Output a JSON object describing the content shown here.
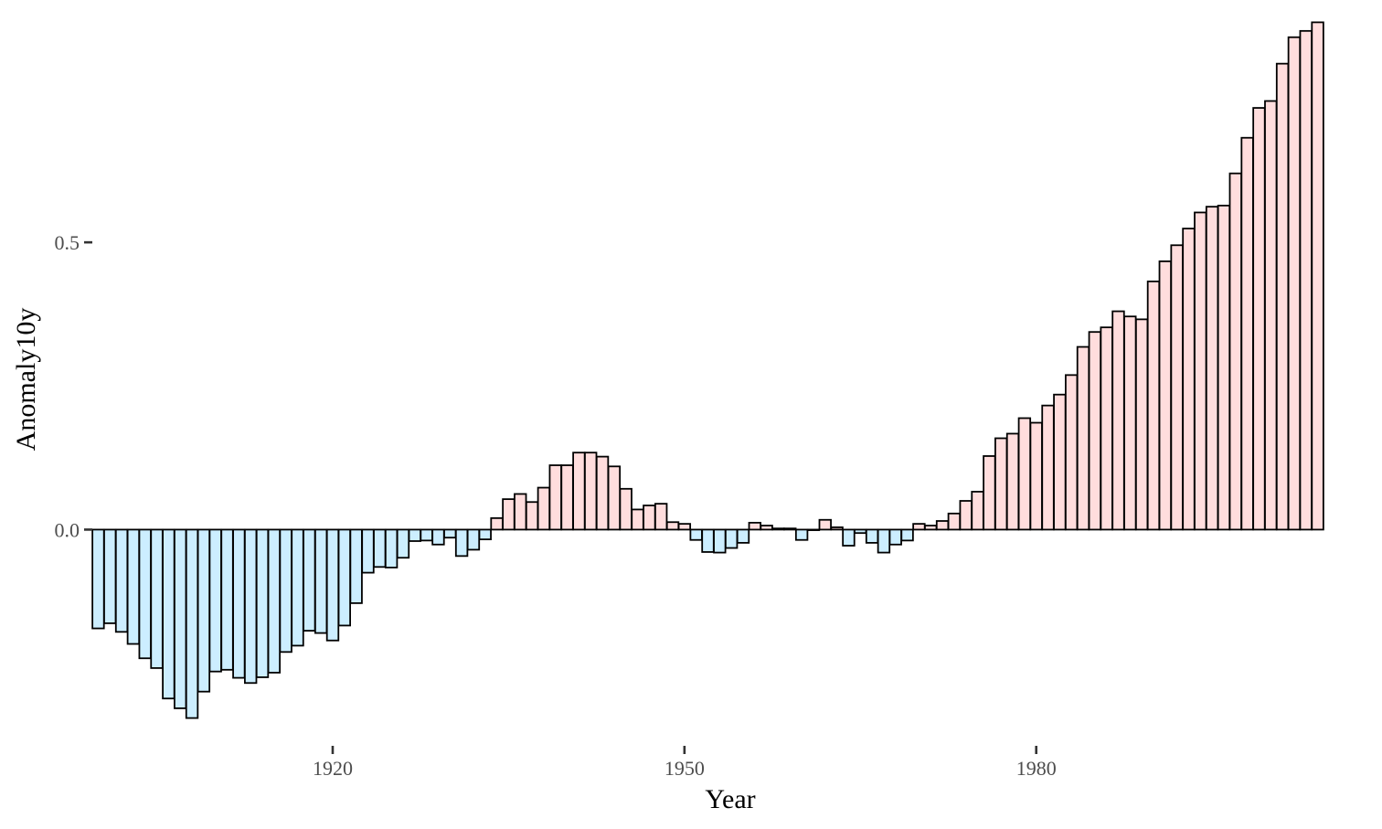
{
  "colors": {
    "negative_fill": "#cceeff",
    "positive_fill": "#ffdddd",
    "bar_stroke": "#000000"
  },
  "chart_data": {
    "type": "bar",
    "title": "",
    "xlabel": "Year",
    "ylabel": "Anomaly10y",
    "x_start": 1900,
    "x_end": 2004,
    "xlim": [
      1899.5,
      2004.5
    ],
    "ylim": [
      -0.37,
      0.89
    ],
    "x_ticks": [
      1920,
      1950,
      1980
    ],
    "x_tick_labels": [
      "1920",
      "1950",
      "1980"
    ],
    "y_ticks": [
      0.0,
      0.5
    ],
    "y_tick_labels": [
      "0.0",
      "0.5"
    ],
    "grid": false,
    "legend": "none",
    "values": [
      -0.172,
      -0.163,
      -0.178,
      -0.199,
      -0.224,
      -0.241,
      -0.294,
      -0.311,
      -0.328,
      -0.282,
      -0.247,
      -0.244,
      -0.258,
      -0.267,
      -0.257,
      -0.249,
      -0.213,
      -0.202,
      -0.176,
      -0.18,
      -0.193,
      -0.167,
      -0.128,
      -0.075,
      -0.065,
      -0.066,
      -0.049,
      -0.02,
      -0.019,
      -0.026,
      -0.014,
      -0.046,
      -0.035,
      -0.017,
      0.02,
      0.053,
      0.062,
      0.048,
      0.073,
      0.112,
      0.112,
      0.134,
      0.134,
      0.127,
      0.11,
      0.071,
      0.035,
      0.042,
      0.045,
      0.013,
      0.01,
      -0.018,
      -0.039,
      -0.04,
      -0.032,
      -0.023,
      0.012,
      0.007,
      0.002,
      0.002,
      -0.018,
      -0.001,
      0.017,
      0.004,
      -0.028,
      -0.006,
      -0.023,
      -0.04,
      -0.026,
      -0.019,
      0.01,
      0.007,
      0.015,
      0.028,
      0.05,
      0.066,
      0.128,
      0.159,
      0.167,
      0.194,
      0.186,
      0.216,
      0.235,
      0.269,
      0.318,
      0.344,
      0.352,
      0.38,
      0.371,
      0.366,
      0.432,
      0.467,
      0.495,
      0.524,
      0.552,
      0.562,
      0.564,
      0.62,
      0.682,
      0.734,
      0.746,
      0.811,
      0.857,
      0.868,
      0.883
    ]
  }
}
